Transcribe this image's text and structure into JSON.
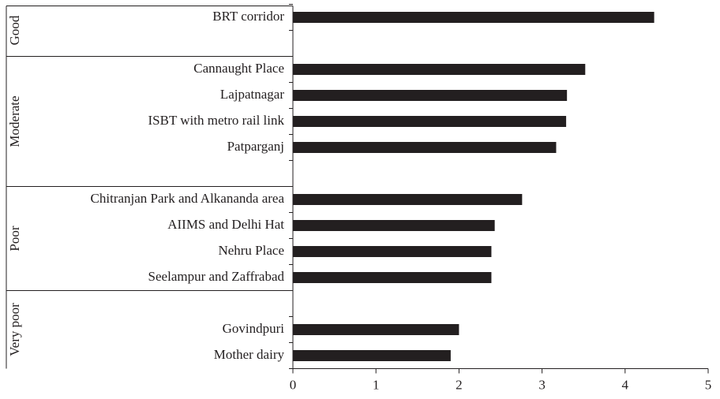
{
  "chart_data": {
    "type": "bar",
    "orientation": "horizontal",
    "categories": [
      "BRT corridor",
      null,
      "Cannaught Place",
      "Lajpatnagar",
      "ISBT with metro rail link",
      "Patparganj",
      null,
      "Chitranjan Park and Alkananda area",
      "AIIMS and Delhi Hat",
      "Nehru Place",
      "Seelampur and Zaffrabad",
      null,
      "Govindpuri",
      "Mother dairy"
    ],
    "values": [
      4.35,
      null,
      3.52,
      3.3,
      3.29,
      3.17,
      null,
      2.76,
      2.43,
      2.39,
      2.39,
      null,
      2.0,
      1.9
    ],
    "color": "#231f20",
    "groups": [
      {
        "label": "Good",
        "count": 2
      },
      {
        "label": "Moderate",
        "count": 5
      },
      {
        "label": "Poor",
        "count": 4
      },
      {
        "label": "Very poor",
        "count": 3
      }
    ],
    "xlim": [
      0,
      5
    ],
    "xticks": [
      0,
      1,
      2,
      3,
      4,
      5
    ],
    "grid": false
  }
}
